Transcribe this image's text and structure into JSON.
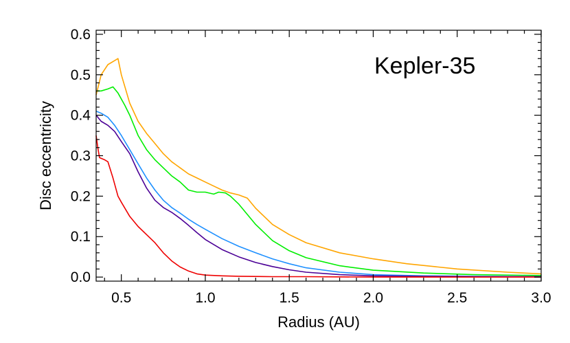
{
  "chart_data": {
    "type": "line",
    "title": "Kepler-35",
    "xlabel": "Radius (AU)",
    "ylabel": "Disc eccentricity",
    "xlim": [
      0.35,
      3.0
    ],
    "ylim": [
      -0.01,
      0.61
    ],
    "xticks": [
      0.5,
      1.0,
      1.5,
      2.0,
      2.5,
      3.0
    ],
    "xtick_labels": [
      "0.5",
      "1.0",
      "1.5",
      "2.0",
      "2.5",
      "3.0"
    ],
    "yticks": [
      0.0,
      0.1,
      0.2,
      0.3,
      0.4,
      0.5,
      0.6
    ],
    "ytick_labels": [
      "0.0",
      "0.1",
      "0.2",
      "0.3",
      "0.4",
      "0.5",
      "0.6"
    ],
    "grid": false,
    "series": [
      {
        "color": "#ffa500",
        "x": [
          0.35,
          0.38,
          0.42,
          0.46,
          0.48,
          0.5,
          0.55,
          0.6,
          0.65,
          0.7,
          0.75,
          0.8,
          0.85,
          0.9,
          0.95,
          1.0,
          1.05,
          1.1,
          1.15,
          1.2,
          1.25,
          1.3,
          1.4,
          1.5,
          1.6,
          1.8,
          2.0,
          2.2,
          2.5,
          2.8,
          3.0
        ],
        "y": [
          0.45,
          0.5,
          0.525,
          0.535,
          0.54,
          0.5,
          0.43,
          0.385,
          0.355,
          0.33,
          0.305,
          0.285,
          0.27,
          0.255,
          0.245,
          0.235,
          0.225,
          0.215,
          0.208,
          0.203,
          0.195,
          0.17,
          0.13,
          0.105,
          0.085,
          0.06,
          0.045,
          0.033,
          0.02,
          0.012,
          0.008
        ]
      },
      {
        "color": "#00ee00",
        "x": [
          0.35,
          0.38,
          0.42,
          0.45,
          0.48,
          0.52,
          0.55,
          0.6,
          0.65,
          0.7,
          0.75,
          0.8,
          0.85,
          0.9,
          0.95,
          1.0,
          1.05,
          1.08,
          1.12,
          1.15,
          1.2,
          1.3,
          1.4,
          1.5,
          1.6,
          1.8,
          2.0,
          2.3,
          2.6,
          3.0
        ],
        "y": [
          0.46,
          0.46,
          0.465,
          0.47,
          0.455,
          0.425,
          0.4,
          0.35,
          0.315,
          0.29,
          0.27,
          0.25,
          0.235,
          0.215,
          0.21,
          0.21,
          0.205,
          0.21,
          0.208,
          0.2,
          0.18,
          0.13,
          0.09,
          0.065,
          0.048,
          0.028,
          0.017,
          0.01,
          0.006,
          0.004
        ]
      },
      {
        "color": "#1e90ff",
        "x": [
          0.35,
          0.38,
          0.42,
          0.46,
          0.5,
          0.55,
          0.6,
          0.65,
          0.7,
          0.75,
          0.8,
          0.85,
          0.9,
          0.95,
          1.0,
          1.1,
          1.2,
          1.3,
          1.4,
          1.5,
          1.6,
          1.8,
          2.0,
          2.3,
          2.6,
          3.0
        ],
        "y": [
          0.41,
          0.405,
          0.395,
          0.375,
          0.35,
          0.315,
          0.28,
          0.245,
          0.215,
          0.19,
          0.172,
          0.158,
          0.143,
          0.13,
          0.118,
          0.095,
          0.076,
          0.06,
          0.045,
          0.033,
          0.023,
          0.012,
          0.006,
          0.003,
          0.002,
          0.001
        ]
      },
      {
        "color": "#4b0096",
        "x": [
          0.35,
          0.38,
          0.42,
          0.46,
          0.5,
          0.55,
          0.6,
          0.65,
          0.7,
          0.75,
          0.8,
          0.85,
          0.9,
          0.95,
          1.0,
          1.1,
          1.2,
          1.3,
          1.4,
          1.5,
          1.6,
          1.8,
          2.0,
          2.3,
          2.6,
          3.0
        ],
        "y": [
          0.4,
          0.385,
          0.375,
          0.36,
          0.335,
          0.305,
          0.26,
          0.22,
          0.19,
          0.172,
          0.16,
          0.145,
          0.128,
          0.11,
          0.093,
          0.068,
          0.05,
          0.036,
          0.026,
          0.018,
          0.012,
          0.006,
          0.003,
          0.002,
          0.001,
          0.001
        ]
      },
      {
        "color": "#ee0000",
        "x": [
          0.35,
          0.36,
          0.37,
          0.4,
          0.42,
          0.45,
          0.48,
          0.5,
          0.55,
          0.6,
          0.65,
          0.7,
          0.75,
          0.8,
          0.85,
          0.9,
          0.95,
          1.0,
          1.1,
          1.2,
          1.4,
          1.6,
          2.0,
          2.5,
          3.0
        ],
        "y": [
          0.35,
          0.32,
          0.295,
          0.29,
          0.285,
          0.245,
          0.2,
          0.185,
          0.15,
          0.125,
          0.105,
          0.085,
          0.06,
          0.04,
          0.025,
          0.015,
          0.008,
          0.005,
          0.003,
          0.002,
          0.001,
          0.001,
          0.0,
          0.0,
          0.0
        ]
      }
    ]
  }
}
